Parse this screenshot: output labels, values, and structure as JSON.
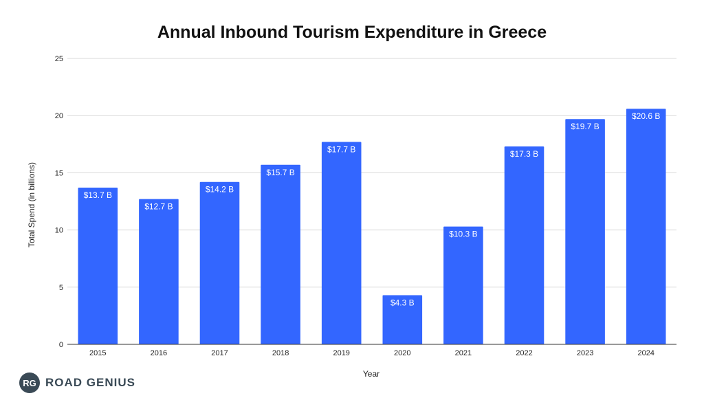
{
  "chart_data": {
    "type": "bar",
    "title": "Annual Inbound Tourism Expenditure in Greece",
    "xlabel": "Year",
    "ylabel": "Total Spend (in billions)",
    "ylim": [
      0,
      25
    ],
    "yticks": [
      0,
      5,
      10,
      15,
      20,
      25
    ],
    "grid": true,
    "bar_color": "#3366ff",
    "categories": [
      "2015",
      "2016",
      "2017",
      "2018",
      "2019",
      "2020",
      "2021",
      "2022",
      "2023",
      "2024"
    ],
    "values": [
      13.7,
      12.7,
      14.2,
      15.7,
      17.7,
      4.3,
      10.3,
      17.3,
      19.7,
      20.6
    ],
    "data_labels": [
      "$13.7 B",
      "$12.7 B",
      "$14.2 B",
      "$15.7 B",
      "$17.7 B",
      "$4.3 B",
      "$10.3 B",
      "$17.3 B",
      "$19.7 B",
      "$20.6 B"
    ]
  },
  "logo": {
    "mark": "RG",
    "text": "ROAD GENIUS",
    "color": "#3a4a56"
  }
}
